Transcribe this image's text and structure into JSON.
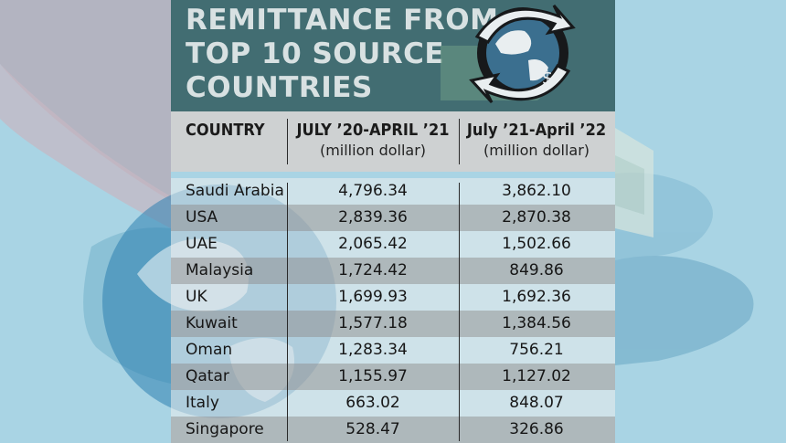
{
  "graphic": {
    "title": "REMITTANCE FROM\nTOP 10 SOURCE\nCOUNTRIES",
    "colors": {
      "sky": "#a9d4e4",
      "title_panel": "#3a6468",
      "title_text": "#d8e1e2",
      "header_band": "#d0d0d0",
      "row_shade": "#afafaf"
    },
    "icons": [
      "globe-with-dollar-arrows-icon",
      "money-stack-icon",
      "hand-icon",
      "globe-icon"
    ]
  },
  "chart_data": {
    "type": "table",
    "columns": [
      {
        "main": "COUNTRY",
        "sub": ""
      },
      {
        "main": "JULY ’20-APRIL ’21",
        "sub": "(million dollar)"
      },
      {
        "main": "July ’21-April ’22",
        "sub": "(million dollar)"
      }
    ],
    "rows": [
      {
        "country": "Saudi Arabia",
        "y2021": "4,796.34",
        "y2022": "3,862.10"
      },
      {
        "country": "USA",
        "y2021": "2,839.36",
        "y2022": "2,870.38"
      },
      {
        "country": "UAE",
        "y2021": "2,065.42",
        "y2022": "1,502.66"
      },
      {
        "country": "Malaysia",
        "y2021": "1,724.42",
        "y2022": "849.86"
      },
      {
        "country": "UK",
        "y2021": "1,699.93",
        "y2022": "1,692.36"
      },
      {
        "country": "Kuwait",
        "y2021": "1,577.18",
        "y2022": "1,384.56"
      },
      {
        "country": "Oman",
        "y2021": "1,283.34",
        "y2022": "756.21"
      },
      {
        "country": "Qatar",
        "y2021": "1,155.97",
        "y2022": "1,127.02"
      },
      {
        "country": "Italy",
        "y2021": "663.02",
        "y2022": "848.07"
      },
      {
        "country": "Singapore",
        "y2021": "528.47",
        "y2022": "326.86"
      }
    ]
  }
}
